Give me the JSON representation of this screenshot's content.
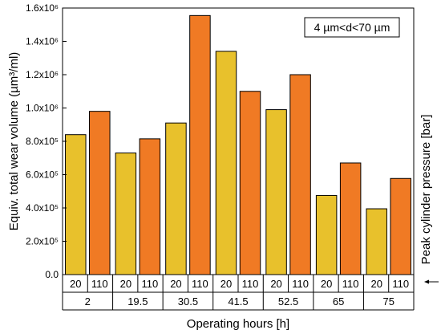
{
  "chart_data": {
    "type": "bar",
    "xlabel": "Operating hours [h]",
    "ylabel": "Equiv. total wear volume (µm³/ml)",
    "right_label": "Peak cylinder pressure [bar]",
    "annotation": "4 µm<d<70 µm",
    "ylim": [
      0,
      1600000
    ],
    "yticks": [
      {
        "value": 0,
        "label": "0.0"
      },
      {
        "value": 200000,
        "label": "2.0x10⁵"
      },
      {
        "value": 400000,
        "label": "4.0x10⁵"
      },
      {
        "value": 600000,
        "label": "6.0x10⁵"
      },
      {
        "value": 800000,
        "label": "8.0x10⁵"
      },
      {
        "value": 1000000,
        "label": "1.0x10⁶"
      },
      {
        "value": 1200000,
        "label": "1.2x10⁶"
      },
      {
        "value": 1400000,
        "label": "1.4x10⁶"
      },
      {
        "value": 1600000,
        "label": "1.6x10⁶"
      }
    ],
    "groups": [
      {
        "hours": "2",
        "bars": [
          {
            "pressure": "20",
            "value": 840000
          },
          {
            "pressure": "110",
            "value": 980000
          }
        ]
      },
      {
        "hours": "19.5",
        "bars": [
          {
            "pressure": "20",
            "value": 730000
          },
          {
            "pressure": "110",
            "value": 815000
          }
        ]
      },
      {
        "hours": "30.5",
        "bars": [
          {
            "pressure": "20",
            "value": 910000
          },
          {
            "pressure": "110",
            "value": 1555000
          }
        ]
      },
      {
        "hours": "41.5",
        "bars": [
          {
            "pressure": "20",
            "value": 1340000
          },
          {
            "pressure": "110",
            "value": 1100000
          }
        ]
      },
      {
        "hours": "52.5",
        "bars": [
          {
            "pressure": "20",
            "value": 990000
          },
          {
            "pressure": "110",
            "value": 1200000
          }
        ]
      },
      {
        "hours": "65",
        "bars": [
          {
            "pressure": "20",
            "value": 475000
          },
          {
            "pressure": "110",
            "value": 670000
          }
        ]
      },
      {
        "hours": "75",
        "bars": [
          {
            "pressure": "20",
            "value": 395000
          },
          {
            "pressure": "110",
            "value": 577000
          }
        ]
      }
    ],
    "colors": {
      "20": "#e8c12c",
      "110": "#f07a24"
    },
    "grid": false
  }
}
